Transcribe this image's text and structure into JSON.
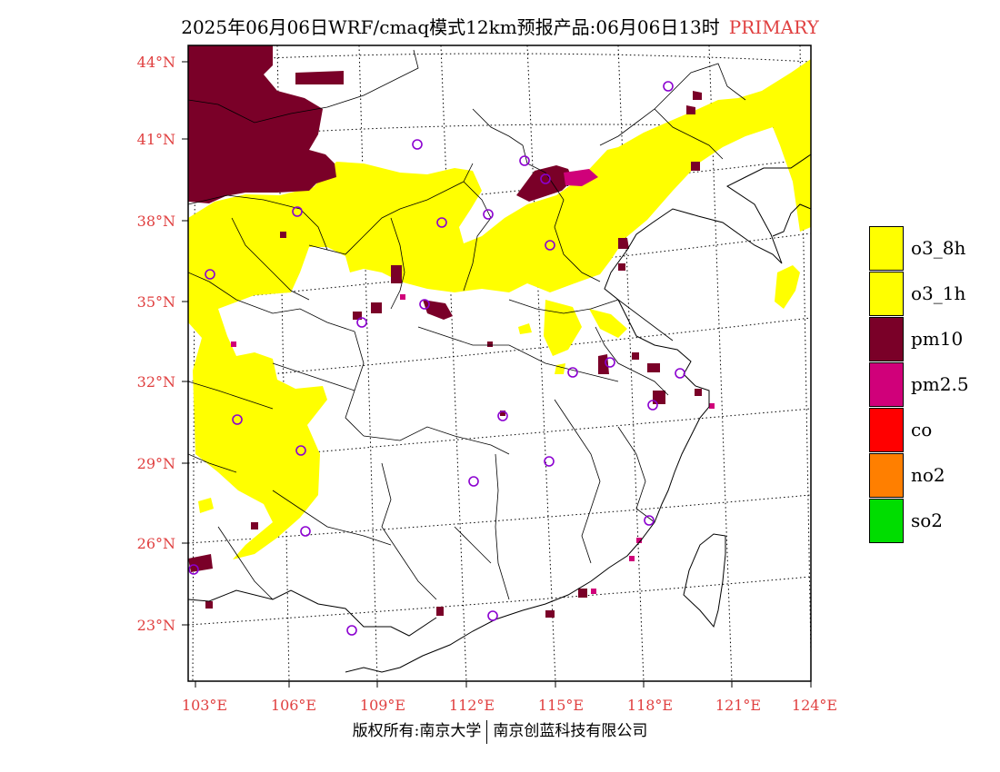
{
  "title": {
    "main": "2025年06月06日WRF/cmaq模式12km预报产品:06月06日13时",
    "tag": "PRIMARY"
  },
  "axes": {
    "lat_labels": [
      "44°N",
      "41°N",
      "38°N",
      "35°N",
      "32°N",
      "29°N",
      "26°N",
      "23°N"
    ],
    "lon_labels": [
      "103°E",
      "106°E",
      "109°E",
      "112°E",
      "115°E",
      "118°E",
      "121°E",
      "124°E"
    ]
  },
  "legend": [
    {
      "label": "o3_8h",
      "color": "#ffff00"
    },
    {
      "label": "o3_1h",
      "color": "#ffff00"
    },
    {
      "label": "pm10",
      "color": "#7a0028"
    },
    {
      "label": "pm2.5",
      "color": "#d0007a"
    },
    {
      "label": "co",
      "color": "#ff0000"
    },
    {
      "label": "no2",
      "color": "#ff7f00"
    },
    {
      "label": "so2",
      "color": "#00dd00"
    }
  ],
  "colors": {
    "o3": "#ffff00",
    "pm10": "#7a0028",
    "pm25": "#d0007a",
    "station": "#8b00d0",
    "axis_text": "#e04040"
  },
  "footer": {
    "left": "版权所有:南京大学",
    "right": "南京创蓝科技有限公司"
  }
}
